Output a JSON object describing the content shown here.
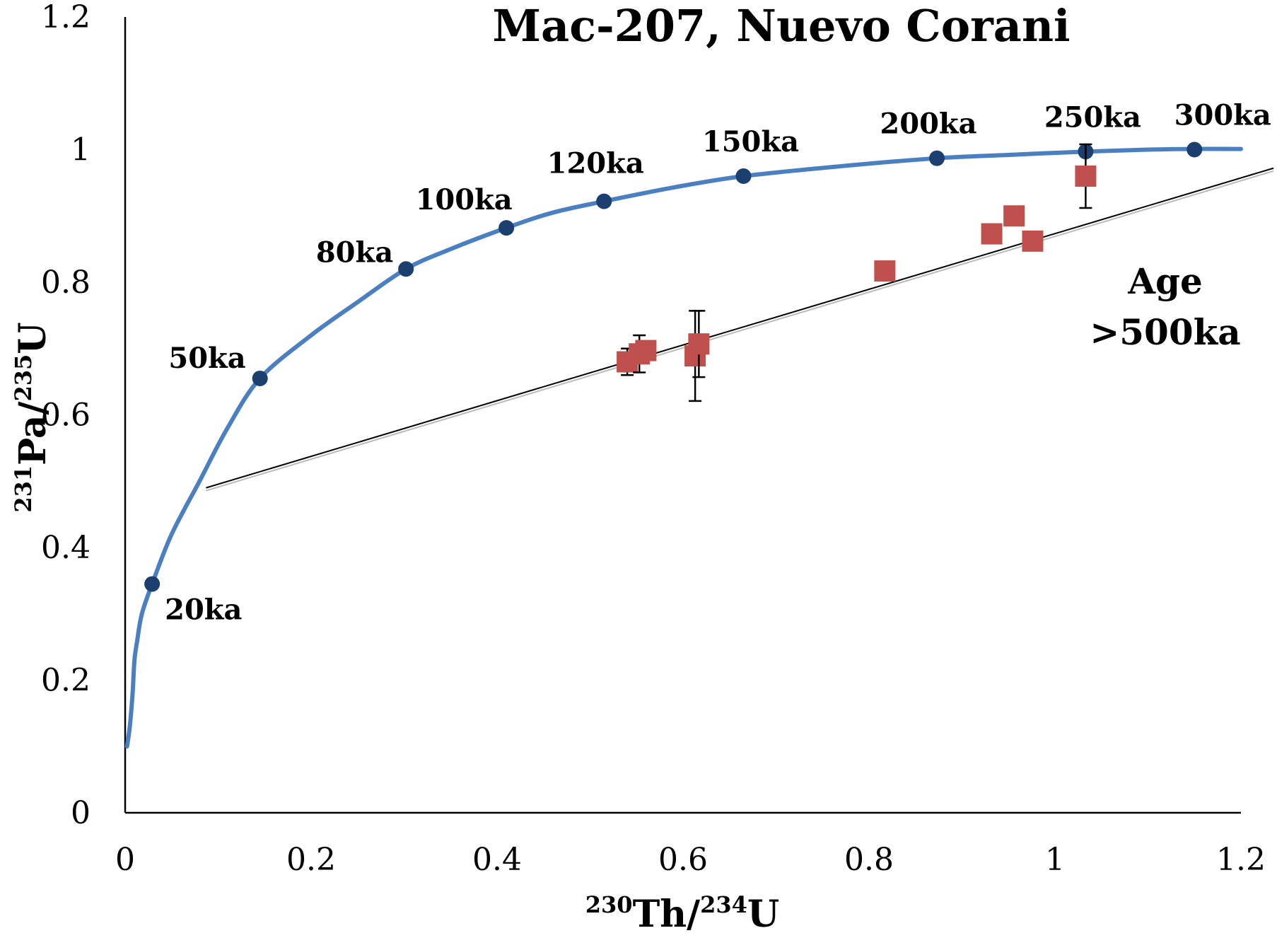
{
  "chart_data": {
    "type": "scatter",
    "title": "Mac-207, Nuevo Corani",
    "xlabel": {
      "sup1": "230",
      "base1": "Th/",
      "sup2": "234",
      "base2": "U"
    },
    "ylabel": {
      "sup1": "231",
      "base1": "Pa/",
      "sup2": "235",
      "base2": "U"
    },
    "xlim": [
      0,
      1.2
    ],
    "ylim": [
      0,
      1.2
    ],
    "x_ticks": [
      0,
      0.2,
      0.4,
      0.6,
      0.8,
      1,
      1.2
    ],
    "x_tick_labels": [
      "0",
      "0.2",
      "0.4",
      "0.6",
      "0.8",
      "1",
      "1.2"
    ],
    "y_ticks": [
      0,
      0.2,
      0.4,
      0.6,
      0.8,
      1,
      1.2
    ],
    "y_tick_labels": [
      "0",
      "0.2",
      "0.4",
      "0.6",
      "0.8",
      "1",
      "1.2"
    ],
    "grid": false,
    "colors": {
      "curve": "#4a7fc1",
      "age_points": "#1b3f6e",
      "samples": "#c0504d",
      "fit_line": "#000000",
      "fit_shadow": "#bbbbbb"
    },
    "concordia_curve": [
      [
        0.002,
        0.1
      ],
      [
        0.005,
        0.13
      ],
      [
        0.008,
        0.18
      ],
      [
        0.01,
        0.23
      ],
      [
        0.013,
        0.26
      ],
      [
        0.018,
        0.3
      ],
      [
        0.029,
        0.345
      ],
      [
        0.05,
        0.42
      ],
      [
        0.08,
        0.5
      ],
      [
        0.11,
        0.58
      ],
      [
        0.145,
        0.655
      ],
      [
        0.2,
        0.72
      ],
      [
        0.25,
        0.77
      ],
      [
        0.302,
        0.82
      ],
      [
        0.35,
        0.85
      ],
      [
        0.41,
        0.882
      ],
      [
        0.46,
        0.905
      ],
      [
        0.515,
        0.922
      ],
      [
        0.59,
        0.943
      ],
      [
        0.665,
        0.96
      ],
      [
        0.77,
        0.975
      ],
      [
        0.873,
        0.987
      ],
      [
        0.95,
        0.992
      ],
      [
        1.033,
        0.997
      ],
      [
        1.1,
        1.0
      ],
      [
        1.15,
        1.001
      ],
      [
        1.2,
        1.001
      ]
    ],
    "age_points": [
      {
        "x": 0.029,
        "y": 0.345,
        "label": "20ka"
      },
      {
        "x": 0.145,
        "y": 0.655,
        "label": "50ka"
      },
      {
        "x": 0.302,
        "y": 0.82,
        "label": "80ka"
      },
      {
        "x": 0.41,
        "y": 0.882,
        "label": "100ka"
      },
      {
        "x": 0.515,
        "y": 0.922,
        "label": "120ka"
      },
      {
        "x": 0.665,
        "y": 0.96,
        "label": "150ka"
      },
      {
        "x": 0.873,
        "y": 0.987,
        "label": "200ka"
      },
      {
        "x": 1.033,
        "y": 0.997,
        "label": "250ka"
      },
      {
        "x": 1.15,
        "y": 1.0,
        "label": "300ka"
      }
    ],
    "samples": [
      {
        "x": 0.54,
        "y": 0.68,
        "err": 0.02
      },
      {
        "x": 0.553,
        "y": 0.692,
        "err": 0.028
      },
      {
        "x": 0.56,
        "y": 0.697,
        "err": 0
      },
      {
        "x": 0.613,
        "y": 0.689,
        "err": 0.068
      },
      {
        "x": 0.617,
        "y": 0.707,
        "err": 0.05
      },
      {
        "x": 0.817,
        "y": 0.817,
        "err": 0
      },
      {
        "x": 0.932,
        "y": 0.873,
        "err": 0
      },
      {
        "x": 0.956,
        "y": 0.9,
        "err": 0
      },
      {
        "x": 0.976,
        "y": 0.862,
        "err": 0
      },
      {
        "x": 1.033,
        "y": 0.96,
        "err": 0.048
      }
    ],
    "fit_line": {
      "x": [
        0.087,
        1.235
      ],
      "y": [
        0.49,
        0.972
      ]
    },
    "annotation": [
      "Age",
      ">500ka"
    ]
  }
}
